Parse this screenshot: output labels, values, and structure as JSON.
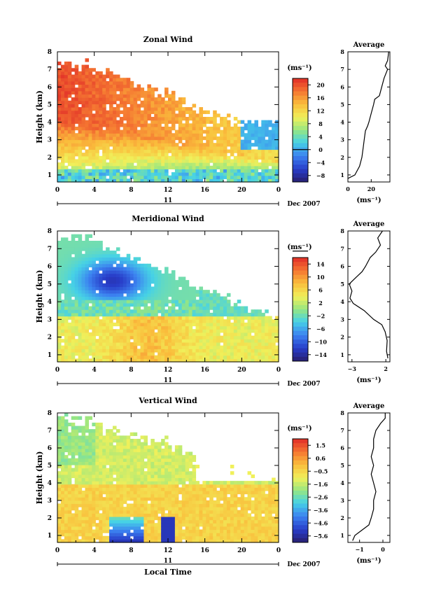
{
  "chart_data": [
    {
      "type": "heatmap",
      "id": "zonal",
      "title": "Zonal Wind",
      "ylabel": "Height (km)",
      "xlabel": "",
      "x_ticks": [
        "0",
        "4",
        "8",
        "12",
        "16",
        "20",
        "0"
      ],
      "y_ticks": [
        "1",
        "2",
        "3",
        "4",
        "5",
        "6",
        "7",
        "8"
      ],
      "xlim": [
        0,
        24
      ],
      "ylim": [
        0.6,
        8
      ],
      "date_marker": "11",
      "date_label": "Dec 2007",
      "colorbar": {
        "unit": "(ms⁻¹)",
        "ticks": [
          "20",
          "16",
          "12",
          "8",
          "4",
          "0",
          "−4",
          "−8"
        ],
        "range": [
          -10,
          22
        ],
        "zero_line": "0"
      },
      "description_series": [
        {
          "x": 0,
          "y_top": 7.2,
          "core_mps": 20
        },
        {
          "x": 3,
          "y_top": 7.2,
          "core_mps": 20
        },
        {
          "x": 8,
          "y_top": 6.6,
          "core_mps": 20
        },
        {
          "x": 12,
          "y_top": 5.8,
          "core_mps": 16
        },
        {
          "x": 16,
          "y_top": 4.0,
          "core_mps": 12
        },
        {
          "x": 20,
          "y_top": 3.3,
          "core_mps": 4
        },
        {
          "x": 24,
          "y_top": 4.0,
          "core_mps": 0
        }
      ],
      "average_profile": {
        "title": "Average",
        "xlabel": "(ms⁻¹)",
        "x_ticks": [
          "0",
          "20"
        ],
        "xlim": [
          0,
          36
        ],
        "y_ticks": [
          "1",
          "2",
          "3",
          "4",
          "5",
          "6",
          "7",
          "8"
        ],
        "height_km": [
          0.8,
          1.0,
          1.5,
          2.0,
          2.5,
          3.0,
          3.5,
          3.8,
          4.0,
          4.5,
          5.0,
          5.3,
          5.5,
          6.0,
          6.5,
          7.0,
          7.2,
          7.5,
          8.0
        ],
        "value_mps": [
          0,
          6,
          10,
          12,
          13,
          14,
          15,
          17,
          18,
          20,
          22,
          23,
          27,
          29,
          31,
          34,
          32,
          34,
          35
        ]
      }
    },
    {
      "type": "heatmap",
      "id": "meridional",
      "title": "Meridional Wind",
      "ylabel": "Height (km)",
      "xlabel": "",
      "x_ticks": [
        "0",
        "4",
        "8",
        "12",
        "16",
        "20",
        "0"
      ],
      "y_ticks": [
        "1",
        "2",
        "3",
        "4",
        "5",
        "6",
        "7",
        "8"
      ],
      "xlim": [
        0,
        24
      ],
      "ylim": [
        0.6,
        8
      ],
      "date_marker": "11",
      "date_label": "Dec 2007",
      "colorbar": {
        "unit": "(ms⁻¹)",
        "ticks": [
          "14",
          "10",
          "6",
          "2",
          "−2",
          "−6",
          "−10",
          "−14"
        ],
        "range": [
          -16,
          16
        ],
        "zero_line": "0"
      },
      "average_profile": {
        "title": "Average",
        "xlabel": "(ms⁻¹)",
        "x_ticks": [
          "−3",
          "2"
        ],
        "xlim": [
          -3.6,
          2.6
        ],
        "y_ticks": [
          "1",
          "2",
          "3",
          "4",
          "5",
          "6",
          "7",
          "8"
        ],
        "height_km": [
          0.8,
          1.2,
          1.8,
          2.3,
          2.7,
          3.0,
          3.5,
          3.9,
          4.2,
          4.6,
          5.0,
          5.3,
          5.7,
          6.0,
          6.5,
          6.8,
          7.2,
          7.6,
          8.0
        ],
        "value_mps": [
          2.3,
          2.1,
          2.2,
          1.9,
          1.4,
          0.2,
          -1.2,
          -2.8,
          -3.3,
          -3.0,
          -3.4,
          -2.6,
          -1.5,
          -1.0,
          -0.3,
          0.5,
          1.2,
          0.8,
          1.5
        ]
      }
    },
    {
      "type": "heatmap",
      "id": "vertical",
      "title": "Vertical Wind",
      "ylabel": "Height (km)",
      "xlabel": "Local Time",
      "x_ticks": [
        "0",
        "4",
        "8",
        "12",
        "16",
        "20",
        "0"
      ],
      "y_ticks": [
        "1",
        "2",
        "3",
        "4",
        "5",
        "6",
        "7",
        "8"
      ],
      "xlim": [
        0,
        24
      ],
      "ylim": [
        0.6,
        8
      ],
      "date_marker": "11",
      "date_label": "Dec 2007",
      "colorbar": {
        "unit": "(ms⁻¹)",
        "ticks": [
          "1.5",
          "0.6",
          "−0.5",
          "−1.6",
          "−2.6",
          "−3.6",
          "−4.6",
          "−5.6"
        ],
        "range": [
          -6.0,
          2.0
        ]
      },
      "average_profile": {
        "title": "Average",
        "xlabel": "(ms⁻¹)",
        "x_ticks": [
          "−1",
          "0"
        ],
        "xlim": [
          -1.5,
          0.3
        ],
        "y_ticks": [
          "1",
          "2",
          "3",
          "4",
          "5",
          "6",
          "7",
          "8"
        ],
        "height_km": [
          0.7,
          1.0,
          1.3,
          1.6,
          2.0,
          2.5,
          3.0,
          3.5,
          4.0,
          4.5,
          5.0,
          5.5,
          6.0,
          6.5,
          7.0,
          7.4,
          7.7,
          8.0
        ],
        "value_mps": [
          -1.3,
          -1.2,
          -0.9,
          -0.6,
          -0.5,
          -0.4,
          -0.4,
          -0.3,
          -0.4,
          -0.5,
          -0.4,
          -0.5,
          -0.4,
          -0.4,
          -0.3,
          -0.1,
          0.1,
          0.1
        ]
      }
    }
  ]
}
